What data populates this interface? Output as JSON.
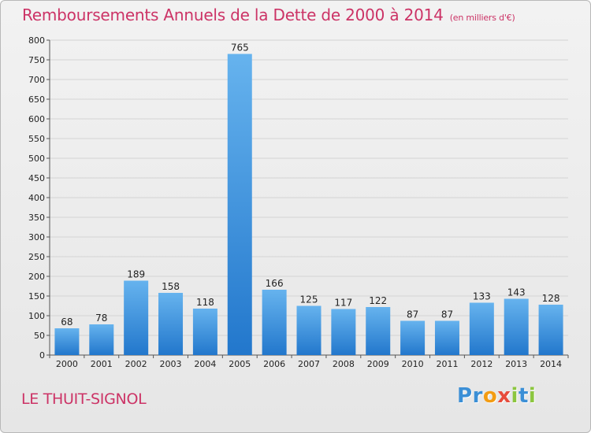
{
  "title": "Remboursements Annuels de la Dette de 2000 à 2014",
  "unit": "(en milliers d'€)",
  "commune": "LE THUIT-SIGNOL",
  "logo": {
    "letters": [
      "P",
      "r",
      "o",
      "x",
      "i",
      "t",
      "i"
    ],
    "colors": [
      "#3b8fd6",
      "#3b8fd6",
      "#f39c12",
      "#e74c3c",
      "#8cc63f",
      "#3b8fd6",
      "#8cc63f"
    ]
  },
  "colors": {
    "title": "#cc3366",
    "bar_top": "#66b3ee",
    "bar_bottom": "#2277cc"
  },
  "chart_data": {
    "type": "bar",
    "categories": [
      "2000",
      "2001",
      "2002",
      "2003",
      "2004",
      "2005",
      "2006",
      "2007",
      "2008",
      "2009",
      "2010",
      "2011",
      "2012",
      "2013",
      "2014"
    ],
    "values": [
      68,
      78,
      189,
      158,
      118,
      765,
      166,
      125,
      117,
      122,
      87,
      87,
      133,
      143,
      128
    ],
    "ylim": [
      0,
      800
    ],
    "yticks": [
      0,
      50,
      100,
      150,
      200,
      250,
      300,
      350,
      400,
      450,
      500,
      550,
      600,
      650,
      700,
      750,
      800
    ],
    "grid": true
  }
}
